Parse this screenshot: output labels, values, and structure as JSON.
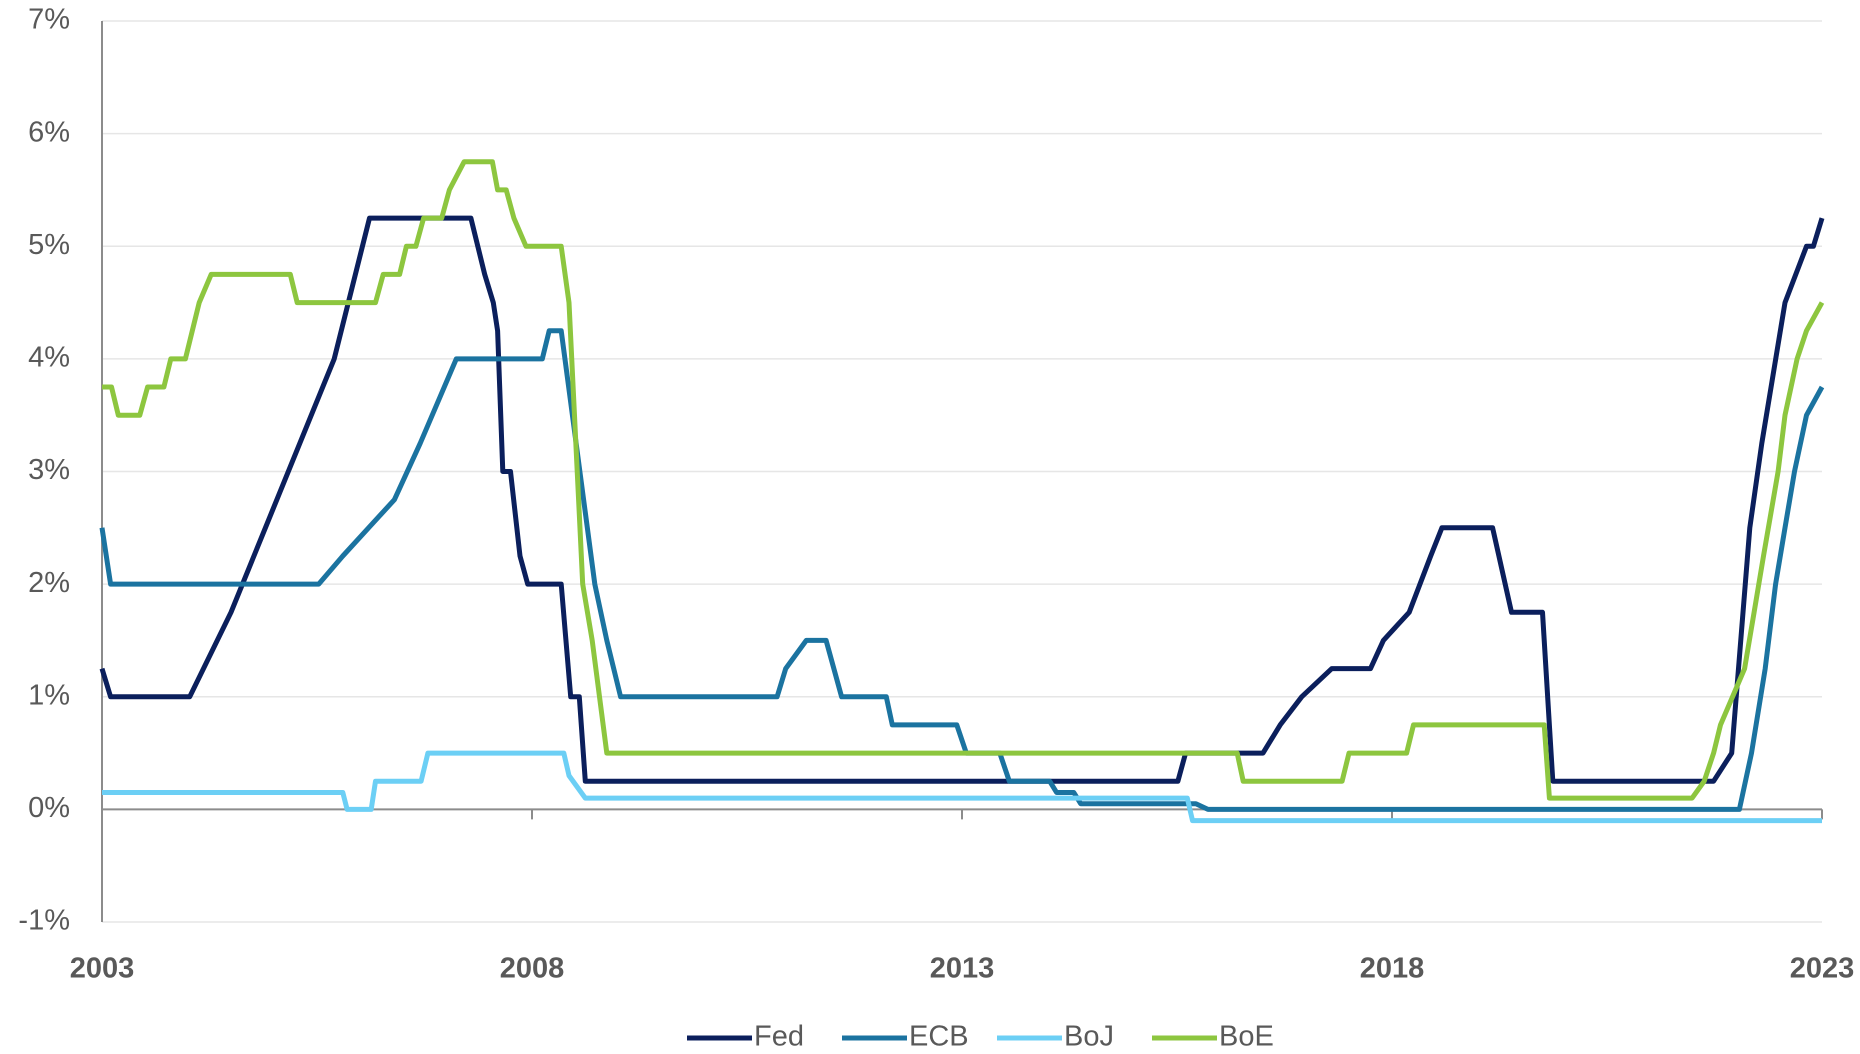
{
  "chart_data": {
    "type": "line",
    "xlim": [
      2003,
      2023
    ],
    "xticks": [
      2003,
      2008,
      2013,
      2018,
      2023
    ],
    "ylim": [
      -1,
      7
    ],
    "yticks": [
      {
        "value": -1,
        "label": "-1%"
      },
      {
        "value": 0,
        "label": "0%"
      },
      {
        "value": 1,
        "label": "1%"
      },
      {
        "value": 2,
        "label": "2%"
      },
      {
        "value": 3,
        "label": "3%"
      },
      {
        "value": 4,
        "label": "4%"
      },
      {
        "value": 5,
        "label": "5%"
      },
      {
        "value": 6,
        "label": "6%"
      },
      {
        "value": 7,
        "label": "7%"
      }
    ],
    "grid": true,
    "legend": "bottom",
    "series": [
      {
        "name": "Fed",
        "color": "#0b1f5c",
        "x": [
          2003.0,
          2003.1,
          2004.02,
          2004.5,
          2004.9,
          2005.3,
          2005.7,
          2006.11,
          2007.29,
          2007.45,
          2007.55,
          2007.6,
          2007.66,
          2007.75,
          2007.86,
          2007.95,
          2008.34,
          2008.45,
          2008.55,
          2008.62,
          2015.51,
          2015.6,
          2016.5,
          2016.7,
          2016.95,
          2017.3,
          2017.75,
          2017.9,
          2018.2,
          2018.45,
          2018.58,
          2019.17,
          2019.39,
          2019.75,
          2019.87,
          2021.74,
          2021.95,
          2022.16,
          2022.3,
          2022.57,
          2022.82,
          2022.9,
          2023.0
        ],
        "values": [
          1.25,
          1.0,
          1.0,
          1.75,
          2.5,
          3.25,
          4.0,
          5.25,
          5.25,
          4.75,
          4.5,
          4.25,
          3.0,
          3.0,
          2.25,
          2.0,
          2.0,
          1.0,
          1.0,
          0.25,
          0.25,
          0.5,
          0.5,
          0.75,
          1.0,
          1.25,
          1.25,
          1.5,
          1.75,
          2.25,
          2.5,
          2.5,
          1.75,
          1.75,
          0.25,
          0.25,
          0.5,
          2.5,
          3.25,
          4.5,
          5.0,
          5.0,
          5.25
        ]
      },
      {
        "name": "ECB",
        "color": "#1b73a0",
        "x": [
          2003.0,
          2003.1,
          2005.52,
          2005.8,
          2006.1,
          2006.4,
          2006.7,
          2007.12,
          2008.12,
          2008.2,
          2008.34,
          2008.73,
          2008.87,
          2009.03,
          2010.85,
          2010.95,
          2011.19,
          2011.42,
          2011.6,
          2012.12,
          2012.19,
          2012.94,
          2013.05,
          2013.44,
          2013.55,
          2014.02,
          2014.1,
          2014.3,
          2014.38,
          2015.72,
          2015.86,
          2022.04,
          2022.18,
          2022.34,
          2022.46,
          2022.57,
          2022.68,
          2022.82,
          2023.0
        ],
        "values": [
          2.5,
          2.0,
          2.0,
          2.25,
          2.5,
          2.75,
          3.25,
          4.0,
          4.0,
          4.25,
          4.25,
          2.0,
          1.5,
          1.0,
          1.0,
          1.25,
          1.5,
          1.5,
          1.0,
          1.0,
          0.75,
          0.75,
          0.5,
          0.5,
          0.25,
          0.25,
          0.15,
          0.15,
          0.05,
          0.05,
          0.0,
          0.0,
          0.5,
          1.25,
          2.0,
          2.5,
          3.0,
          3.5,
          3.75
        ]
      },
      {
        "name": "BoJ",
        "color": "#6ccff5",
        "x": [
          2003.0,
          2005.8,
          2005.85,
          2006.13,
          2006.18,
          2006.71,
          2006.79,
          2008.37,
          2008.43,
          2008.62,
          2015.62,
          2015.68,
          2023.0
        ],
        "values": [
          0.15,
          0.15,
          0.0,
          0.0,
          0.25,
          0.25,
          0.5,
          0.5,
          0.3,
          0.1,
          0.1,
          -0.1,
          -0.1
        ]
      },
      {
        "name": "BoE",
        "color": "#8dc63f",
        "x": [
          2003.0,
          2003.11,
          2003.19,
          2003.44,
          2003.53,
          2003.72,
          2003.8,
          2003.97,
          2004.13,
          2004.27,
          2005.19,
          2005.27,
          2006.18,
          2006.27,
          2006.46,
          2006.54,
          2006.65,
          2006.74,
          2006.95,
          2007.04,
          2007.21,
          2007.54,
          2007.6,
          2007.7,
          2007.79,
          2007.93,
          2008.34,
          2008.43,
          2008.59,
          2008.7,
          2008.87,
          2016.2,
          2016.27,
          2017.42,
          2017.5,
          2018.17,
          2018.25,
          2019.77,
          2019.83,
          2021.49,
          2021.63,
          2021.74,
          2021.82,
          2022.1,
          2022.21,
          2022.32,
          2022.49,
          2022.57,
          2022.71,
          2022.82,
          2023.0
        ],
        "values": [
          3.75,
          3.75,
          3.5,
          3.5,
          3.75,
          3.75,
          4.0,
          4.0,
          4.5,
          4.75,
          4.75,
          4.5,
          4.5,
          4.75,
          4.75,
          5.0,
          5.0,
          5.25,
          5.25,
          5.5,
          5.75,
          5.75,
          5.5,
          5.5,
          5.25,
          5.0,
          5.0,
          4.5,
          2.0,
          1.5,
          0.5,
          0.5,
          0.25,
          0.25,
          0.5,
          0.5,
          0.75,
          0.75,
          0.1,
          0.1,
          0.25,
          0.5,
          0.75,
          1.25,
          1.75,
          2.25,
          3.0,
          3.5,
          4.0,
          4.25,
          4.5
        ]
      }
    ]
  }
}
